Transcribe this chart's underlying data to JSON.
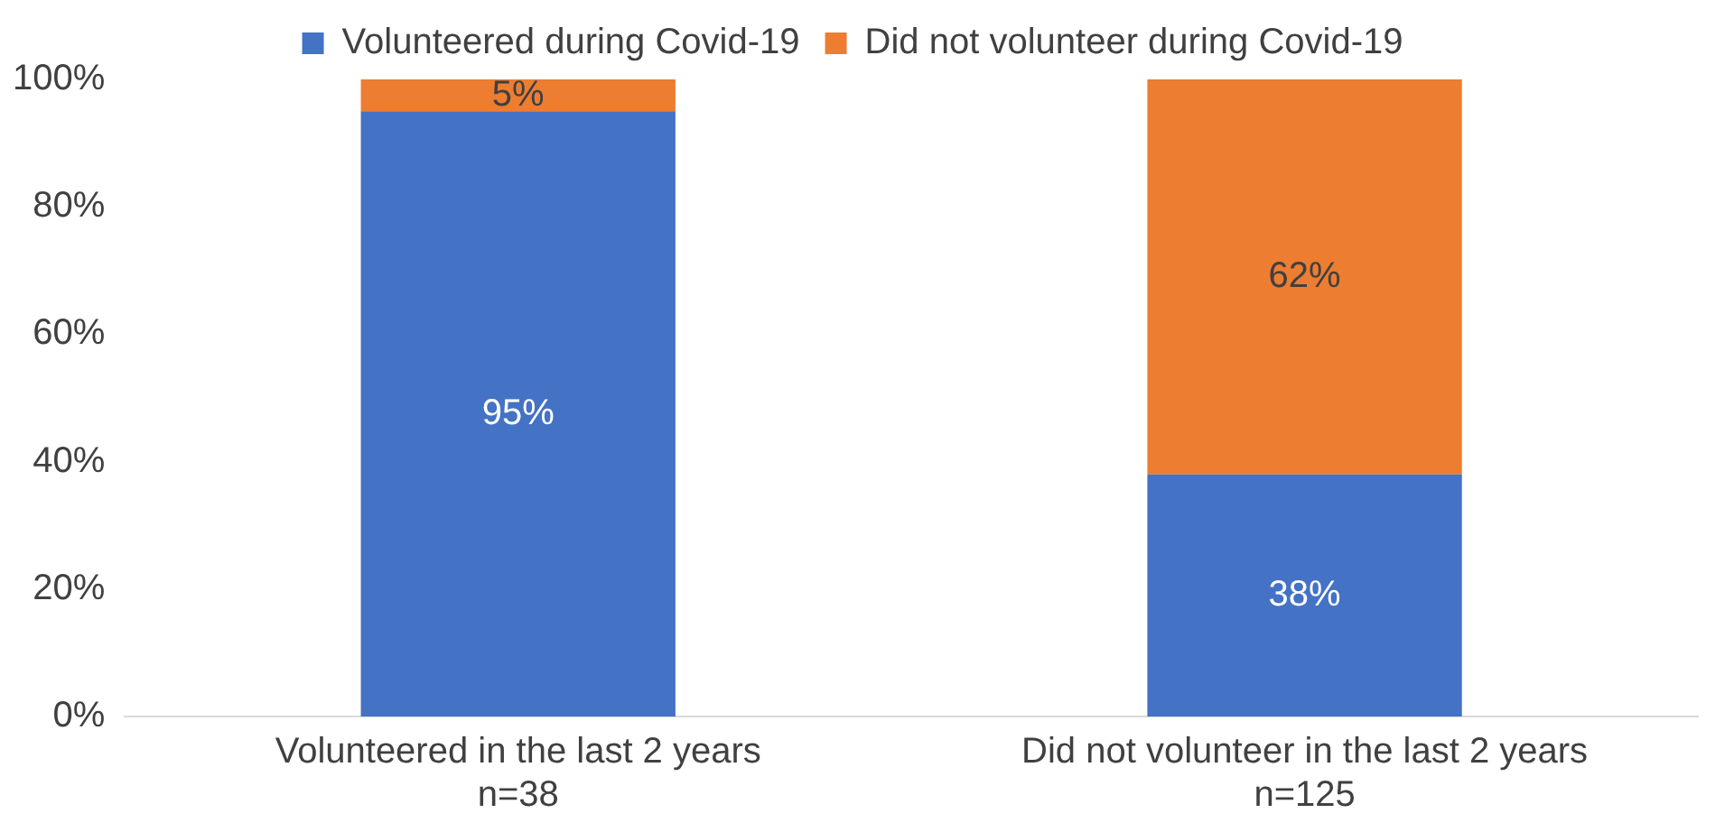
{
  "chart_data": {
    "type": "bar",
    "stacked": true,
    "categories": [
      "Volunteered in the last 2 years\nn=38",
      "Did not volunteer in the last 2 years\nn=125"
    ],
    "series": [
      {
        "name": "Volunteered during Covid-19",
        "color": "#4472c4",
        "values": [
          95,
          38
        ],
        "value_labels": [
          "95%",
          "38%"
        ]
      },
      {
        "name": "Did not volunteer during Covid-19",
        "color": "#ed7d31",
        "values": [
          5,
          62
        ],
        "value_labels": [
          "5%",
          "62%"
        ]
      }
    ],
    "ylim": [
      0,
      100
    ],
    "yticks": [
      {
        "value": 0,
        "label": "0%"
      },
      {
        "value": 20,
        "label": "20%"
      },
      {
        "value": 40,
        "label": "40%"
      },
      {
        "value": 60,
        "label": "60%"
      },
      {
        "value": 80,
        "label": "80%"
      },
      {
        "value": 100,
        "label": "100%"
      }
    ],
    "grid": false,
    "legend": "top"
  }
}
